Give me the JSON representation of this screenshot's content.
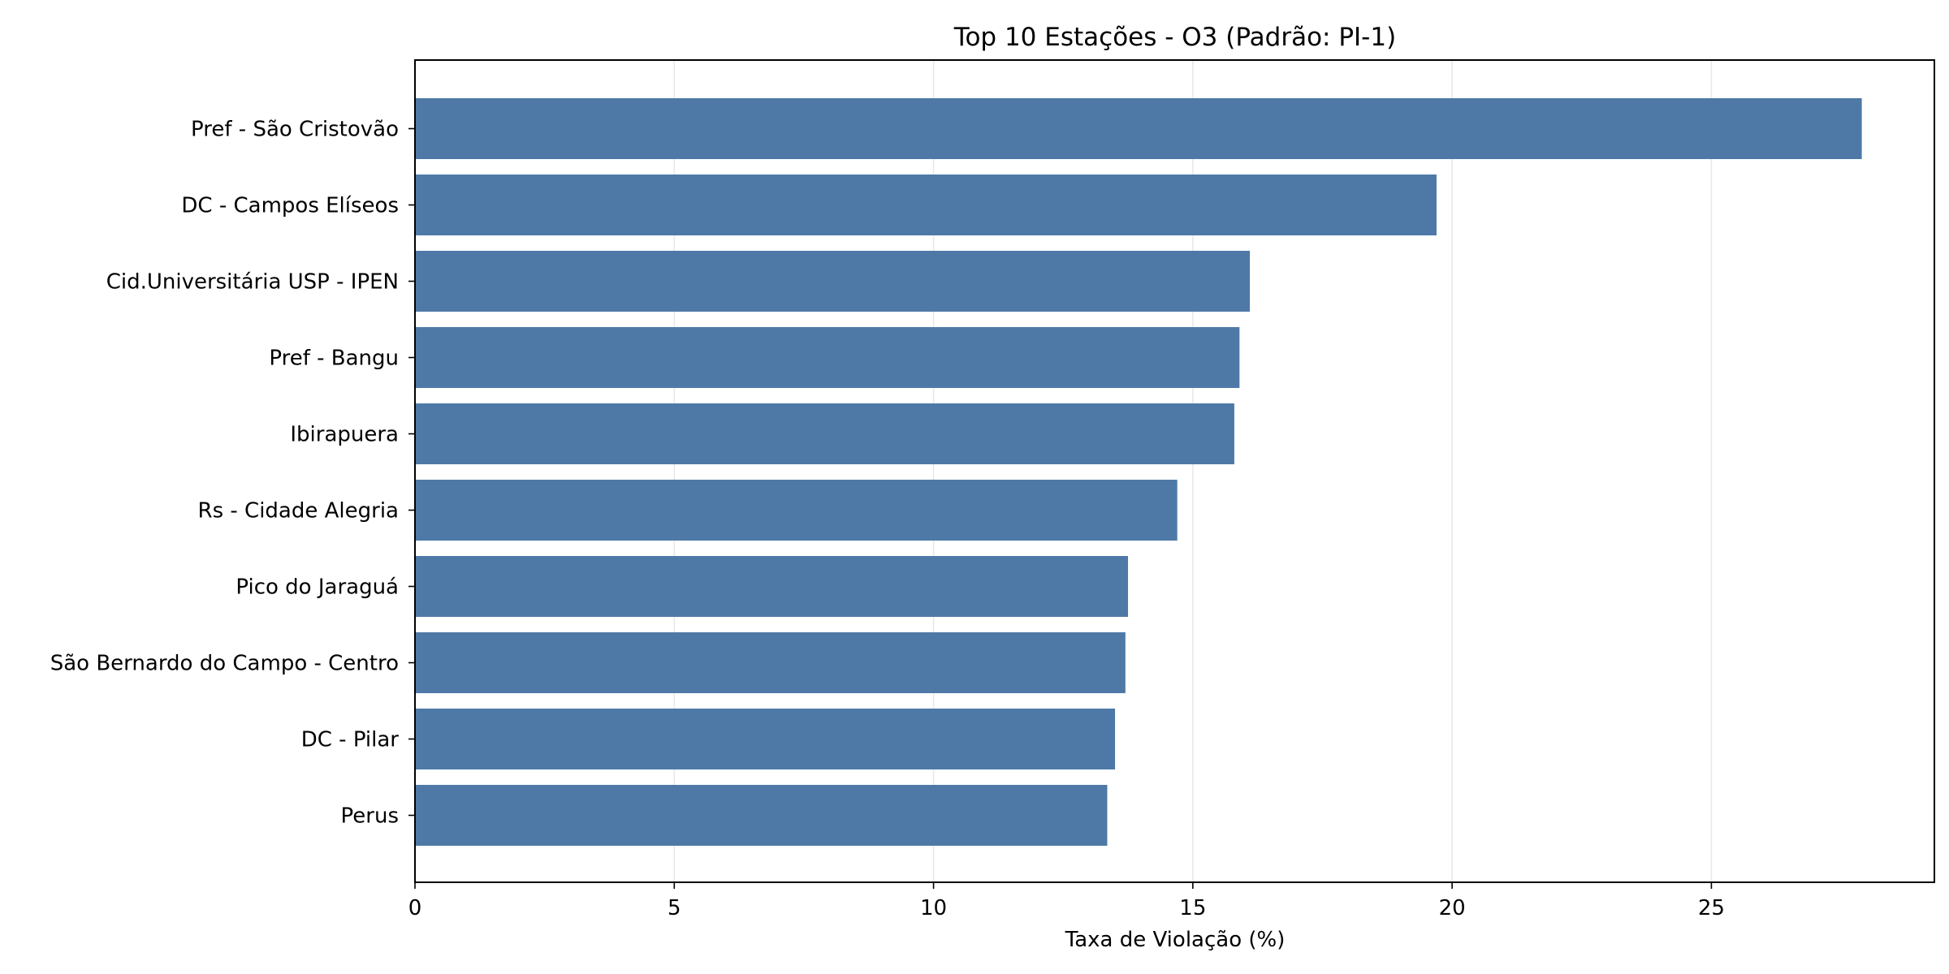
{
  "chart_data": {
    "type": "bar",
    "orientation": "horizontal",
    "title": "Top 10 Estações - O3 (Padrão: PI-1)",
    "xlabel": "Taxa de Violação (%)",
    "ylabel": "",
    "categories": [
      "Pref - São Cristovão",
      "DC - Campos Elíseos",
      "Cid.Universitária USP - IPEN",
      "Pref - Bangu",
      "Ibirapuera",
      "Rs - Cidade Alegria",
      "Pico do Jaraguá",
      "São Bernardo do Campo - Centro",
      "DC - Pilar",
      "Perus"
    ],
    "values": [
      27.9,
      19.7,
      16.1,
      15.9,
      15.8,
      14.7,
      13.75,
      13.7,
      13.5,
      13.35
    ],
    "xlim": [
      0,
      29.3
    ],
    "xticks": [
      0,
      5,
      10,
      15,
      20,
      25
    ],
    "xtick_labels": [
      "0",
      "5",
      "10",
      "15",
      "20",
      "25"
    ],
    "grid": "x",
    "bar_color": "#4e79a7",
    "legend": "none"
  }
}
